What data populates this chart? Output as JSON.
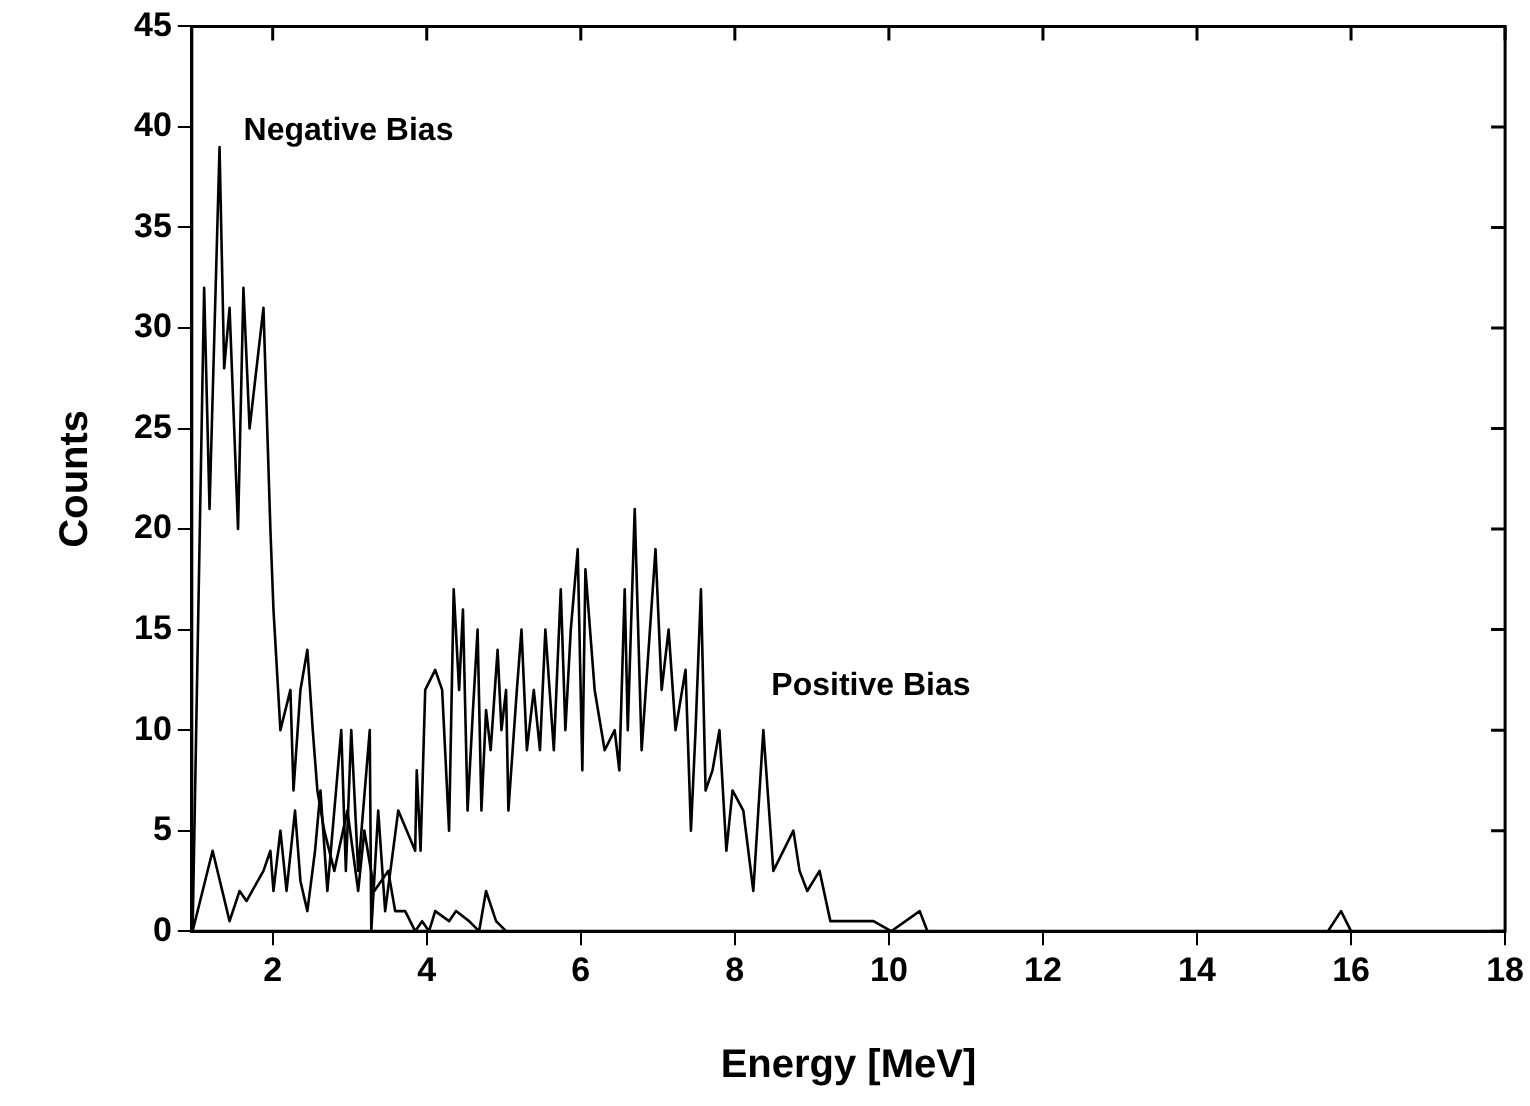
{
  "chart_data": {
    "type": "line",
    "xlabel": "Energy [MeV]",
    "ylabel": "Counts",
    "xlim": [
      0.95,
      18
    ],
    "xticks": [
      2,
      4,
      6,
      8,
      10,
      12,
      14,
      16,
      18
    ],
    "ylim": [
      0,
      45
    ],
    "yticks": [
      0,
      5,
      10,
      15,
      20,
      25,
      30,
      35,
      40,
      45
    ],
    "grid": false,
    "legend": false,
    "marker": "none",
    "line_style": "solid",
    "series": [
      {
        "name": "Negative Bias",
        "color": "#000000",
        "x": [
          0.96,
          1.11,
          1.18,
          1.31,
          1.37,
          1.44,
          1.55,
          1.62,
          1.7,
          1.88,
          1.97,
          2.01,
          2.1,
          2.23,
          2.27,
          2.36,
          2.45,
          2.52,
          2.58,
          2.67,
          2.8,
          2.97,
          3.11,
          3.19,
          3.32,
          3.5,
          3.59,
          3.72,
          3.85,
          3.94,
          4.03,
          4.11,
          4.29,
          4.38,
          4.55,
          4.68,
          4.77,
          4.9,
          5.03
        ],
        "values": [
          0,
          32,
          21,
          39,
          28,
          31,
          20,
          32,
          25,
          31,
          20,
          16,
          10,
          12,
          7,
          12,
          14,
          10,
          7,
          5,
          3,
          6,
          2,
          5,
          2,
          3,
          1,
          1,
          0,
          0.5,
          0,
          1,
          0.5,
          1,
          0.5,
          0,
          2,
          0.5,
          0
        ]
      },
      {
        "name": "Positive Bias",
        "color": "#000000",
        "x": [
          0.96,
          1.22,
          1.44,
          1.57,
          1.66,
          1.88,
          1.97,
          2.01,
          2.1,
          2.18,
          2.29,
          2.36,
          2.45,
          2.55,
          2.62,
          2.71,
          2.89,
          2.95,
          3.02,
          3.11,
          3.26,
          3.28,
          3.37,
          3.46,
          3.63,
          3.85,
          3.87,
          3.92,
          3.98,
          4.11,
          4.2,
          4.29,
          4.35,
          4.42,
          4.47,
          4.53,
          4.6,
          4.66,
          4.71,
          4.77,
          4.83,
          4.92,
          4.97,
          5.03,
          5.06,
          5.17,
          5.23,
          5.3,
          5.39,
          5.47,
          5.54,
          5.65,
          5.74,
          5.8,
          5.87,
          5.96,
          6.02,
          6.06,
          6.18,
          6.31,
          6.44,
          6.5,
          6.57,
          6.61,
          6.7,
          6.79,
          6.97,
          7.05,
          7.14,
          7.23,
          7.36,
          7.43,
          7.49,
          7.56,
          7.62,
          7.71,
          7.8,
          7.89,
          7.97,
          8.11,
          8.24,
          8.37,
          8.5,
          8.76,
          8.84,
          8.94,
          9.1,
          9.24,
          9.55,
          9.8,
          10.03,
          10.4,
          10.5,
          15.7,
          15.87,
          16,
          18
        ],
        "values": [
          0,
          4,
          0.5,
          2,
          1.5,
          3,
          4,
          2,
          5,
          2,
          6,
          2.5,
          1,
          4,
          7,
          2,
          10,
          3,
          10,
          3,
          10,
          0,
          6,
          1,
          6,
          4,
          8,
          4,
          12,
          13,
          12,
          5,
          17,
          12,
          16,
          6,
          11,
          15,
          6,
          11,
          9,
          14,
          10,
          12,
          6,
          12,
          15,
          9,
          12,
          9,
          15,
          9,
          17,
          10,
          15,
          19,
          8,
          18,
          12,
          9,
          10,
          8,
          17,
          10,
          21,
          9,
          19,
          12,
          15,
          10,
          13,
          5,
          10,
          17,
          7,
          8,
          10,
          4,
          7,
          6,
          2,
          10,
          3,
          5,
          3,
          2,
          3,
          0.5,
          0.5,
          0.5,
          0,
          1,
          0,
          0,
          1,
          0,
          0
        ]
      }
    ]
  }
}
